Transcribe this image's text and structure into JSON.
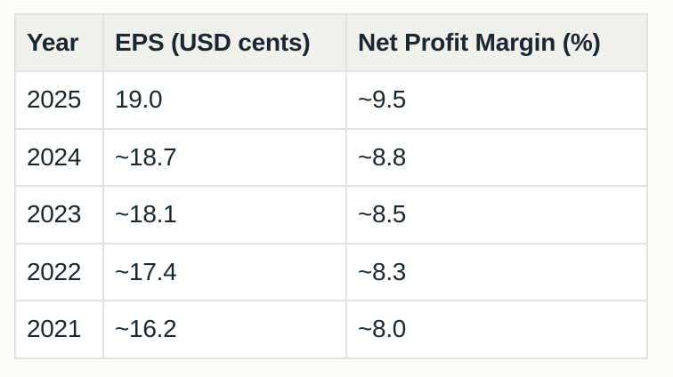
{
  "table": {
    "headers": [
      "Year",
      "EPS (USD cents)",
      "Net Profit Margin (%)"
    ],
    "rows": [
      [
        "2025",
        "19.0",
        "~9.5"
      ],
      [
        "2024",
        "~18.7",
        "~8.8"
      ],
      [
        "2023",
        "~18.1",
        "~8.5"
      ],
      [
        "2022",
        "~17.4",
        "~8.3"
      ],
      [
        "2021",
        "~16.2",
        "~8.0"
      ]
    ]
  }
}
